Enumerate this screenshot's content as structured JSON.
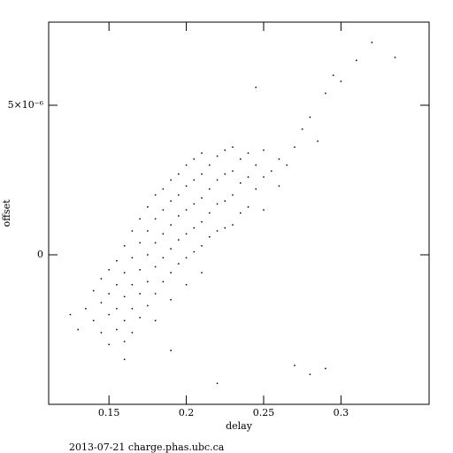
{
  "chart_data": {
    "type": "scatter",
    "xlabel": "delay",
    "ylabel": "offset",
    "footer": "2013-07-21 charge.phas.ubc.ca",
    "color": "#000000",
    "xlim": [
      0.111,
      0.357
    ],
    "xticks": [
      0.15,
      0.2,
      0.25,
      0.3
    ],
    "ylim": [
      -5e-06,
      7.78e-06
    ],
    "yticks": [
      0,
      {
        "value": 5e-06,
        "label": "5×10⁻⁶"
      }
    ],
    "x": [
      0.13,
      0.135,
      0.14,
      0.14,
      0.145,
      0.145,
      0.145,
      0.15,
      0.15,
      0.15,
      0.15,
      0.155,
      0.155,
      0.155,
      0.155,
      0.16,
      0.16,
      0.16,
      0.16,
      0.16,
      0.165,
      0.165,
      0.165,
      0.165,
      0.165,
      0.17,
      0.17,
      0.17,
      0.17,
      0.17,
      0.175,
      0.175,
      0.175,
      0.175,
      0.175,
      0.18,
      0.18,
      0.18,
      0.18,
      0.18,
      0.18,
      0.185,
      0.185,
      0.185,
      0.185,
      0.185,
      0.19,
      0.19,
      0.19,
      0.19,
      0.19,
      0.19,
      0.195,
      0.195,
      0.195,
      0.195,
      0.195,
      0.2,
      0.2,
      0.2,
      0.2,
      0.2,
      0.2,
      0.205,
      0.205,
      0.205,
      0.205,
      0.205,
      0.21,
      0.21,
      0.21,
      0.21,
      0.21,
      0.21,
      0.215,
      0.215,
      0.215,
      0.215,
      0.22,
      0.22,
      0.22,
      0.22,
      0.225,
      0.225,
      0.225,
      0.225,
      0.23,
      0.23,
      0.23,
      0.23,
      0.235,
      0.235,
      0.235,
      0.24,
      0.24,
      0.24,
      0.245,
      0.245,
      0.25,
      0.25,
      0.25,
      0.255,
      0.26,
      0.26,
      0.265,
      0.27,
      0.27,
      0.275,
      0.28,
      0.285,
      0.29,
      0.295,
      0.3,
      0.31,
      0.32,
      0.335,
      0.22,
      0.245,
      0.19,
      0.16,
      0.125,
      0.28,
      0.29
    ],
    "values": [
      -2.5e-06,
      -1.8e-06,
      -1.2e-06,
      -2.2e-06,
      -8e-07,
      -1.6e-06,
      -2.6e-06,
      -5e-07,
      -1.3e-06,
      -2e-06,
      -3e-06,
      -2e-07,
      -1e-06,
      -1.8e-06,
      -2.5e-06,
      3e-07,
      -6e-07,
      -1.4e-06,
      -2.2e-06,
      -2.9e-06,
      8e-07,
      -1e-07,
      -1e-06,
      -1.8e-06,
      -2.6e-06,
      1.2e-06,
      4e-07,
      -5e-07,
      -1.3e-06,
      -2.1e-06,
      1.6e-06,
      8e-07,
      0,
      -9e-07,
      -1.7e-06,
      2e-06,
      1.2e-06,
      4e-07,
      -4e-07,
      -1.3e-06,
      -2.2e-06,
      2.2e-06,
      1.5e-06,
      7e-07,
      -1e-07,
      -9e-07,
      2.5e-06,
      1.8e-06,
      1e-06,
      2e-07,
      -6e-07,
      -1.5e-06,
      2.7e-06,
      2e-06,
      1.3e-06,
      5e-07,
      -3e-07,
      3e-06,
      2.3e-06,
      1.5e-06,
      7e-07,
      -1e-07,
      -1e-06,
      3.2e-06,
      2.5e-06,
      1.7e-06,
      9e-07,
      1e-07,
      3.4e-06,
      2.7e-06,
      1.9e-06,
      1.1e-06,
      3e-07,
      -6e-07,
      3e-06,
      2.2e-06,
      1.4e-06,
      6e-07,
      3.3e-06,
      2.5e-06,
      1.7e-06,
      8e-07,
      3.5e-06,
      2.7e-06,
      1.8e-06,
      9e-07,
      3.6e-06,
      2.8e-06,
      2e-06,
      1e-06,
      3.2e-06,
      2.4e-06,
      1.4e-06,
      3.4e-06,
      2.6e-06,
      1.6e-06,
      3e-06,
      2.2e-06,
      3.5e-06,
      2.6e-06,
      1.5e-06,
      2.8e-06,
      3.2e-06,
      2.3e-06,
      3e-06,
      3.6e-06,
      -3.7e-06,
      4.2e-06,
      4.6e-06,
      3.8e-06,
      5.4e-06,
      6e-06,
      5.8e-06,
      6.5e-06,
      7.1e-06,
      6.6e-06,
      -4.3e-06,
      5.6e-06,
      -3.2e-06,
      -3.5e-06,
      -2e-06,
      -4e-06,
      -3.8e-06
    ]
  }
}
